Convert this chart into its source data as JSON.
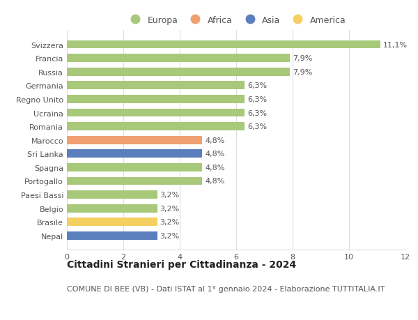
{
  "categories": [
    "Nepal",
    "Brasile",
    "Belgio",
    "Paesi Bassi",
    "Portogallo",
    "Spagna",
    "Sri Lanka",
    "Marocco",
    "Romania",
    "Ucraina",
    "Regno Unito",
    "Germania",
    "Russia",
    "Francia",
    "Svizzera"
  ],
  "values": [
    3.2,
    3.2,
    3.2,
    3.2,
    4.8,
    4.8,
    4.8,
    4.8,
    6.3,
    6.3,
    6.3,
    6.3,
    7.9,
    7.9,
    11.1
  ],
  "bar_colors": [
    "#5b7fbe",
    "#f5d060",
    "#a8c87a",
    "#a8c87a",
    "#a8c87a",
    "#a8c87a",
    "#5b7fbe",
    "#f0a070",
    "#a8c87a",
    "#a8c87a",
    "#a8c87a",
    "#a8c87a",
    "#a8c87a",
    "#a8c87a",
    "#a8c87a"
  ],
  "labels": [
    "3,2%",
    "3,2%",
    "3,2%",
    "3,2%",
    "4,8%",
    "4,8%",
    "4,8%",
    "4,8%",
    "6,3%",
    "6,3%",
    "6,3%",
    "6,3%",
    "7,9%",
    "7,9%",
    "11,1%"
  ],
  "xlim": [
    0,
    12
  ],
  "xticks": [
    0,
    2,
    4,
    6,
    8,
    10,
    12
  ],
  "title": "Cittadini Stranieri per Cittadinanza - 2024",
  "subtitle": "COMUNE DI BEE (VB) - Dati ISTAT al 1° gennaio 2024 - Elaborazione TUTTITALIA.IT",
  "legend_entries": [
    "Europa",
    "Africa",
    "Asia",
    "America"
  ],
  "legend_colors": [
    "#a8c87a",
    "#f0a070",
    "#5b7fbe",
    "#f5d060"
  ],
  "background_color": "#ffffff",
  "grid_color": "#dddddd",
  "title_fontsize": 10,
  "subtitle_fontsize": 8,
  "label_fontsize": 8,
  "tick_fontsize": 8,
  "legend_fontsize": 9
}
